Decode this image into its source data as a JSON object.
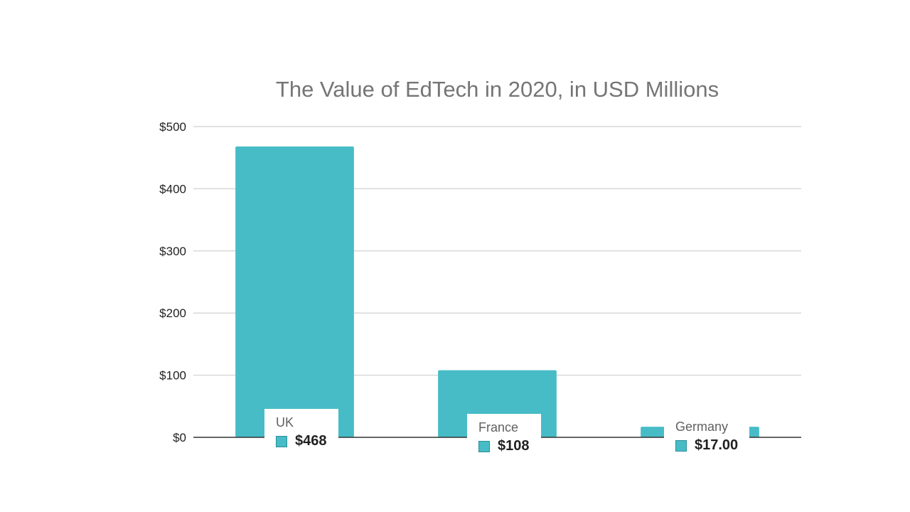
{
  "chart_data": {
    "type": "bar",
    "title": "The Value of EdTech in 2020, in USD Millions",
    "categories": [
      "UK",
      "France",
      "Germany"
    ],
    "values": [
      468,
      108,
      17
    ],
    "value_labels": [
      "$468",
      "$108",
      "$17.00"
    ],
    "ylim": [
      0,
      500
    ],
    "yticks": [
      0,
      100,
      200,
      300,
      400,
      500
    ],
    "ytick_labels": [
      "$0",
      "$100",
      "$200",
      "$300",
      "$400",
      "$500"
    ],
    "xlabel": "",
    "ylabel": "",
    "grid": true,
    "legend": "none",
    "bar_color": "#47bcc7",
    "grid_color": "#d9d9d9",
    "axis_color": "#333333"
  }
}
